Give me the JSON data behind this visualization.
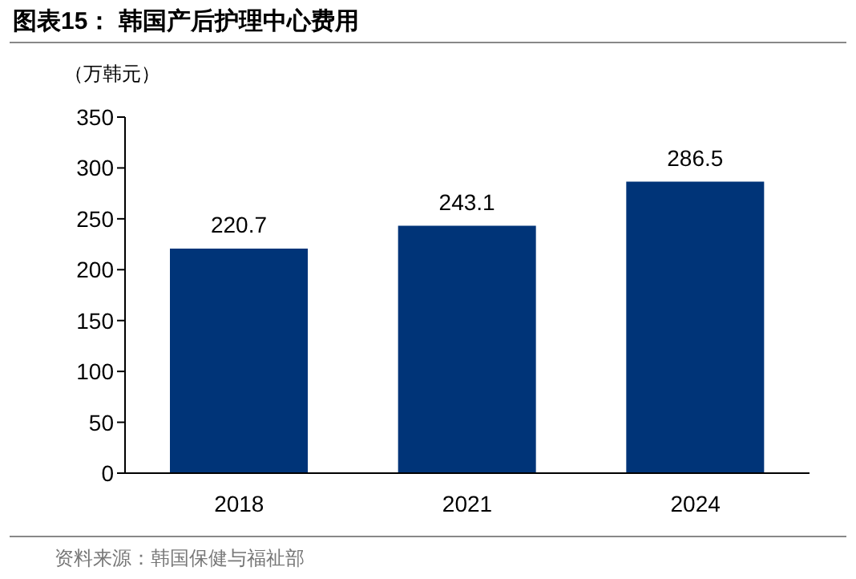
{
  "chart_data": {
    "type": "bar",
    "title": "图表15： 韩国产后护理中心费用",
    "ylabel": "（万韩元）",
    "categories": [
      "2018",
      "2021",
      "2024"
    ],
    "values": [
      220.7,
      243.1,
      286.5
    ],
    "color": "#003478",
    "ylim": [
      0,
      350
    ],
    "yticks": [
      0,
      50,
      100,
      150,
      200,
      250,
      300,
      350
    ],
    "data_labels": true,
    "annotations": [
      "资料来源：韩国保健与福祉部"
    ]
  }
}
